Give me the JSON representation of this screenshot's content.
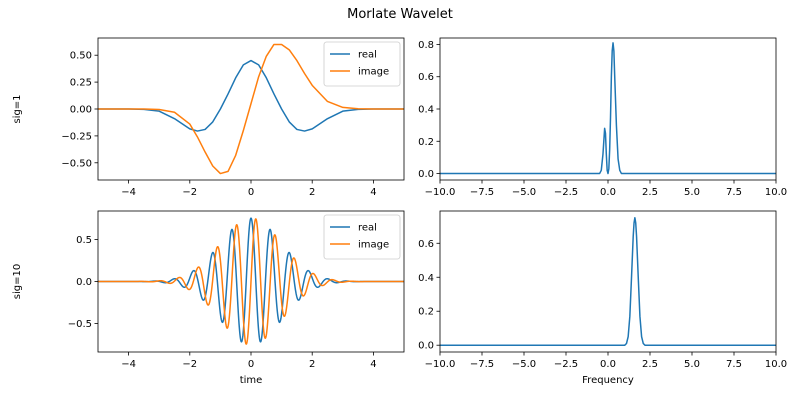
{
  "figure": {
    "title": "Morlate Wavelet"
  },
  "chart_data": [
    {
      "type": "line",
      "panel": "top-left",
      "title": "",
      "xlabel": "",
      "ylabel": "sig=1",
      "xlim": [
        -5,
        5
      ],
      "ylim": [
        -0.66,
        0.66
      ],
      "xticks": [
        -4,
        -2,
        0,
        2,
        4
      ],
      "yticks": [
        -0.5,
        -0.25,
        0.0,
        0.25,
        0.5
      ],
      "xtick_labels": [
        "−4",
        "−2",
        "0",
        "2",
        "4"
      ],
      "ytick_labels": [
        "−0.50",
        "−0.25",
        "0.00",
        "0.25",
        "0.50"
      ],
      "grid": false,
      "legend": "top-right",
      "series": [
        {
          "name": "real",
          "color": "#1f77b4",
          "x": [
            -5,
            -4.5,
            -4,
            -3.5,
            -3,
            -2.5,
            -2,
            -1.75,
            -1.5,
            -1.25,
            -1,
            -0.75,
            -0.5,
            -0.25,
            0,
            0.25,
            0.5,
            0.75,
            1,
            1.25,
            1.5,
            1.75,
            2,
            2.5,
            3,
            3.5,
            4,
            4.5,
            5
          ],
          "values": [
            0.0,
            0.0,
            0.0,
            -0.003,
            -0.02,
            -0.09,
            -0.185,
            -0.205,
            -0.19,
            -0.12,
            0.0,
            0.14,
            0.29,
            0.41,
            0.45,
            0.41,
            0.29,
            0.14,
            0.0,
            -0.12,
            -0.19,
            -0.205,
            -0.185,
            -0.09,
            -0.02,
            -0.003,
            0.0,
            0.0,
            0.0
          ]
        },
        {
          "name": "image",
          "color": "#ff7f0e",
          "x": [
            -5,
            -4.5,
            -4,
            -3.5,
            -3,
            -2.5,
            -2,
            -1.75,
            -1.5,
            -1.25,
            -1,
            -0.75,
            -0.5,
            -0.25,
            0,
            0.25,
            0.5,
            0.75,
            1,
            1.25,
            1.5,
            1.75,
            2,
            2.5,
            3,
            3.5,
            4,
            4.5,
            5
          ],
          "values": [
            0.0,
            0.0,
            0.0,
            0.0,
            -0.005,
            -0.03,
            -0.14,
            -0.26,
            -0.4,
            -0.53,
            -0.6,
            -0.58,
            -0.43,
            -0.2,
            0.05,
            0.3,
            0.49,
            0.6,
            0.6,
            0.55,
            0.45,
            0.33,
            0.22,
            0.07,
            0.015,
            0.002,
            0.0,
            0.0,
            0.0
          ]
        }
      ]
    },
    {
      "type": "line",
      "panel": "top-right",
      "title": "",
      "xlabel": "",
      "ylabel": "",
      "xlim": [
        -10,
        10
      ],
      "ylim": [
        -0.04,
        0.84
      ],
      "xticks": [
        -10,
        -7.5,
        -5,
        -2.5,
        0,
        2.5,
        5,
        7.5,
        10
      ],
      "yticks": [
        0.0,
        0.2,
        0.4,
        0.6,
        0.8
      ],
      "xtick_labels": [
        "−10.0",
        "−7.5",
        "−5.0",
        "−2.5",
        "0.0",
        "2.5",
        "5.0",
        "7.5",
        "10.0"
      ],
      "ytick_labels": [
        "0.0",
        "0.2",
        "0.4",
        "0.6",
        "0.8"
      ],
      "grid": false,
      "legend": "none",
      "series": [
        {
          "color": "#1f77b4",
          "x": [
            -10,
            -1,
            -0.5,
            -0.4,
            -0.3,
            -0.25,
            -0.2,
            -0.15,
            -0.1,
            -0.05,
            0,
            0.05,
            0.1,
            0.15,
            0.2,
            0.25,
            0.3,
            0.35,
            0.4,
            0.5,
            0.6,
            0.7,
            0.8,
            1.0,
            1.5,
            10
          ],
          "values": [
            0,
            0,
            0.0,
            0.02,
            0.12,
            0.2,
            0.28,
            0.25,
            0.12,
            0.02,
            0.0,
            0.03,
            0.15,
            0.35,
            0.6,
            0.76,
            0.81,
            0.76,
            0.6,
            0.3,
            0.09,
            0.02,
            0.0,
            0,
            0,
            0
          ]
        }
      ]
    },
    {
      "type": "line",
      "panel": "bottom-left",
      "title": "",
      "xlabel": "time",
      "ylabel": "sig=10",
      "xlim": [
        -5,
        5
      ],
      "ylim": [
        -0.84,
        0.84
      ],
      "xticks": [
        -4,
        -2,
        0,
        2,
        4
      ],
      "yticks": [
        -0.5,
        0.0,
        0.5
      ],
      "xtick_labels": [
        "−4",
        "−2",
        "0",
        "2",
        "4"
      ],
      "ytick_labels": [
        "−0.5",
        "0.0",
        "0.5"
      ],
      "grid": false,
      "legend": "top-right",
      "series": [
        {
          "name": "real",
          "color": "#1f77b4",
          "frequency": 1.5915,
          "phase": "cos",
          "amplitude": 0.755,
          "width": 1.0,
          "x_range": [
            -5,
            5
          ]
        },
        {
          "name": "image",
          "color": "#ff7f0e",
          "frequency": 1.5915,
          "phase": "sin",
          "amplitude": 0.755,
          "width": 1.0,
          "x_range": [
            -5,
            5
          ]
        }
      ]
    },
    {
      "type": "line",
      "panel": "bottom-right",
      "title": "",
      "xlabel": "Frequency",
      "ylabel": "",
      "xlim": [
        -10,
        10
      ],
      "ylim": [
        -0.04,
        0.79
      ],
      "xticks": [
        -10,
        -7.5,
        -5,
        -2.5,
        0,
        2.5,
        5,
        7.5,
        10
      ],
      "yticks": [
        0.0,
        0.2,
        0.4,
        0.6
      ],
      "xtick_labels": [
        "−10.0",
        "−7.5",
        "−5.0",
        "−2.5",
        "0.0",
        "2.5",
        "5.0",
        "7.5",
        "10.0"
      ],
      "ytick_labels": [
        "0.0",
        "0.2",
        "0.4",
        "0.6"
      ],
      "grid": false,
      "legend": "none",
      "series": [
        {
          "color": "#1f77b4",
          "x": [
            -10,
            1.0,
            1.1,
            1.2,
            1.3,
            1.4,
            1.5,
            1.55,
            1.6,
            1.65,
            1.7,
            1.8,
            1.9,
            2.0,
            2.1,
            2.2,
            10
          ],
          "values": [
            0,
            0.0,
            0.01,
            0.05,
            0.17,
            0.4,
            0.64,
            0.72,
            0.75,
            0.72,
            0.64,
            0.4,
            0.17,
            0.05,
            0.01,
            0.0,
            0
          ]
        }
      ]
    }
  ]
}
